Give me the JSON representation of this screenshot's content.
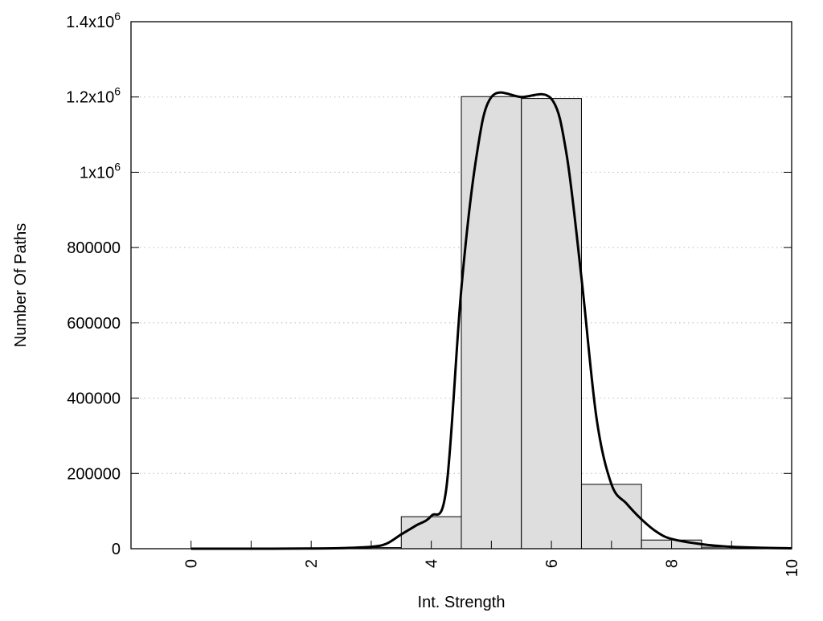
{
  "chart_data": {
    "type": "bar",
    "title": "",
    "xlabel": "Int. Strength",
    "ylabel": "Number Of Paths",
    "xlim": [
      -1,
      10
    ],
    "ylim": [
      0,
      1400000
    ],
    "grid": "horizontal-dotted",
    "x_ticks": [
      0,
      1,
      2,
      3,
      4,
      5,
      6,
      7,
      8,
      9,
      10
    ],
    "x_tick_labels": [
      {
        "value": 0,
        "label": "0"
      },
      {
        "value": 2,
        "label": "2"
      },
      {
        "value": 4,
        "label": "4"
      },
      {
        "value": 6,
        "label": "6"
      },
      {
        "value": 8,
        "label": "8"
      },
      {
        "value": 10,
        "label": "10"
      }
    ],
    "y_tick_labels": [
      {
        "value": 0,
        "label": "0"
      },
      {
        "value": 200000,
        "label": "200000"
      },
      {
        "value": 400000,
        "label": "400000"
      },
      {
        "value": 600000,
        "label": "600000"
      },
      {
        "value": 800000,
        "label": "800000"
      },
      {
        "value": 1000000,
        "label": "1x10",
        "sup": "6"
      },
      {
        "value": 1200000,
        "label": "1.2x10",
        "sup": "6"
      },
      {
        "value": 1400000,
        "label": "1.4x10",
        "sup": "6"
      }
    ],
    "bars": {
      "width": 1,
      "x": [
        0,
        1,
        2,
        3,
        4,
        5,
        6,
        7,
        8,
        9,
        10
      ],
      "values": [
        0,
        0,
        500,
        3000,
        85000,
        1201000,
        1196000,
        171000,
        23000,
        4000,
        500
      ],
      "fill": "#dedede",
      "stroke": "#000000"
    },
    "curve": {
      "x": [
        0,
        1,
        2,
        2.5,
        3,
        3.25,
        3.5,
        3.75,
        4,
        4.25,
        4.5,
        4.75,
        5,
        5.5,
        6,
        6.25,
        6.5,
        6.75,
        7,
        7.25,
        7.5,
        7.75,
        8,
        8.5,
        9,
        9.5,
        10
      ],
      "y": [
        0,
        0,
        500,
        1500,
        5000,
        13000,
        38000,
        62000,
        87000,
        160000,
        690000,
        1040000,
        1200000,
        1200000,
        1195000,
        1050000,
        720000,
        348000,
        171000,
        120000,
        78000,
        45000,
        26000,
        12000,
        5000,
        2500,
        1000
      ],
      "color": "#000000"
    }
  }
}
